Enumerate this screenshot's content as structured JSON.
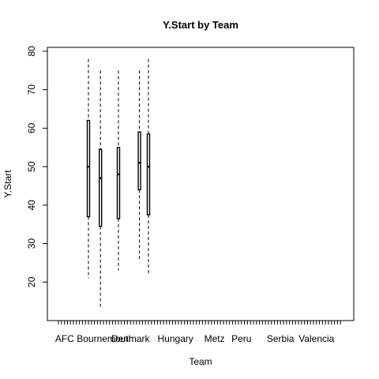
{
  "chart_data": {
    "type": "box",
    "title": "Y.Start by Team",
    "xlabel": "Team",
    "ylabel": "Y.Start",
    "ylim": [
      10,
      81
    ],
    "yticks": [
      20,
      30,
      40,
      50,
      60,
      70,
      80
    ],
    "category_count": 95,
    "x_tick_labels": [
      {
        "label": "AFC Bournemouth",
        "index": 12
      },
      {
        "label": "Denmark",
        "index": 24
      },
      {
        "label": "Hungary",
        "index": 39
      },
      {
        "label": "Metz",
        "index": 52
      },
      {
        "label": "Peru",
        "index": 61
      },
      {
        "label": "Serbia",
        "index": 74
      },
      {
        "label": "Valencia",
        "index": 86
      }
    ],
    "boxes": [
      {
        "index": 10,
        "min": 21,
        "q1": 37,
        "median": 50,
        "q3": 62,
        "max": 78
      },
      {
        "index": 14,
        "min": 13,
        "q1": 34.5,
        "median": 47,
        "q3": 54.5,
        "max": 75
      },
      {
        "index": 20,
        "min": 23,
        "q1": 36.5,
        "median": 48,
        "q3": 55,
        "max": 75
      },
      {
        "index": 27,
        "min": 26,
        "q1": 44,
        "median": 51,
        "q3": 59,
        "max": 75
      },
      {
        "index": 30,
        "min": 22,
        "q1": 37.5,
        "median": 50,
        "q3": 58.5,
        "max": 78
      }
    ],
    "grid": false,
    "legend": "none"
  }
}
